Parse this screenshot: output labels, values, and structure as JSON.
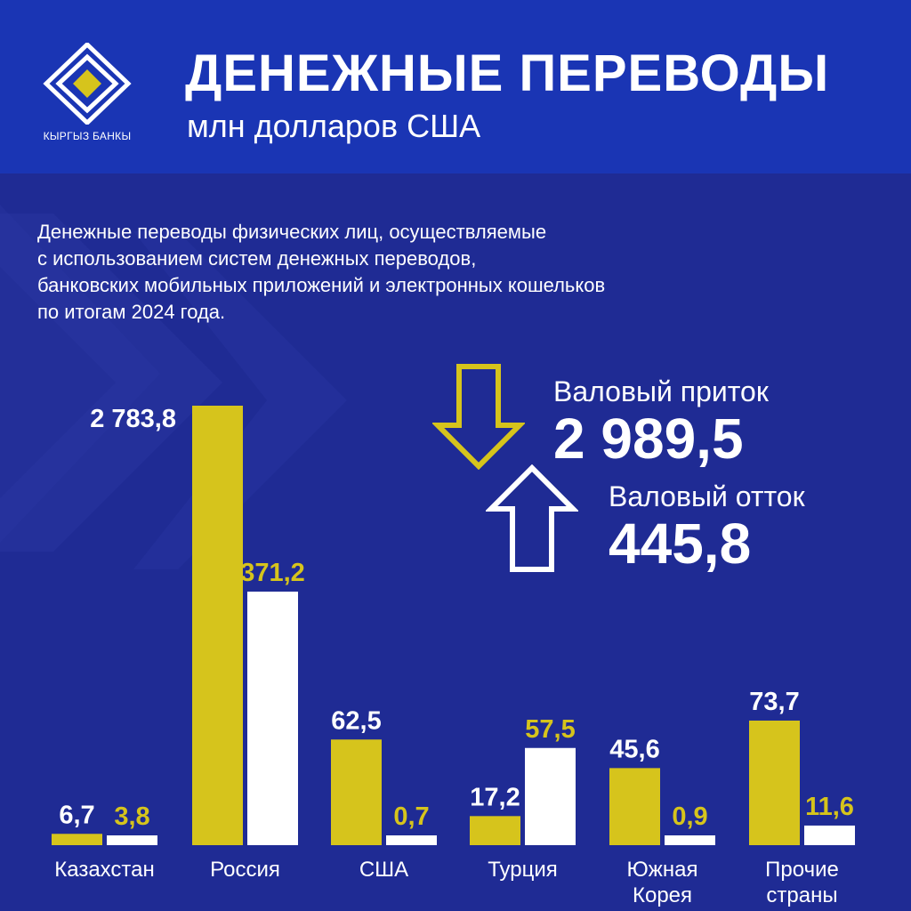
{
  "header": {
    "title": "ДЕНЕЖНЫЕ ПЕРЕВОДЫ",
    "subtitle": "млн долларов США",
    "logo_text": "КЫРГЫЗ БАНКЫ"
  },
  "description": [
    "Денежные переводы физических лиц, осуществляемые",
    "с использованием систем денежных переводов,",
    "банковских мобильных приложений и электронных кошельков",
    "по итогам 2024 года."
  ],
  "summary": {
    "inflow_label": "Валовый приток",
    "inflow_value": "2 989,5",
    "outflow_label": "Валовый отток",
    "outflow_value": "445,8"
  },
  "colors": {
    "background": "#1f2b94",
    "header_bg": "#1a35b4",
    "inflow": "#d6c41c",
    "outflow": "#ffffff"
  },
  "chart_data": {
    "type": "bar",
    "categories": [
      [
        "Казахстан"
      ],
      [
        "Россия"
      ],
      [
        "США"
      ],
      [
        "Турция"
      ],
      [
        "Южная",
        "Корея"
      ],
      [
        "Прочие",
        "страны"
      ]
    ],
    "series": [
      {
        "values": [
          6.7,
          2783.8,
          62.5,
          17.2,
          45.6,
          73.7
        ],
        "labels": [
          "6,7",
          "2 783,8",
          "62,5",
          "17,2",
          "45,6",
          "73,7"
        ],
        "color": "#d6c41c"
      },
      {
        "values": [
          3.8,
          371.2,
          0.7,
          57.5,
          0.9,
          11.6
        ],
        "labels": [
          "3,8",
          "371,2",
          "0,7",
          "57,5",
          "0,9",
          "11,6"
        ],
        "color": "#ffffff"
      }
    ]
  }
}
